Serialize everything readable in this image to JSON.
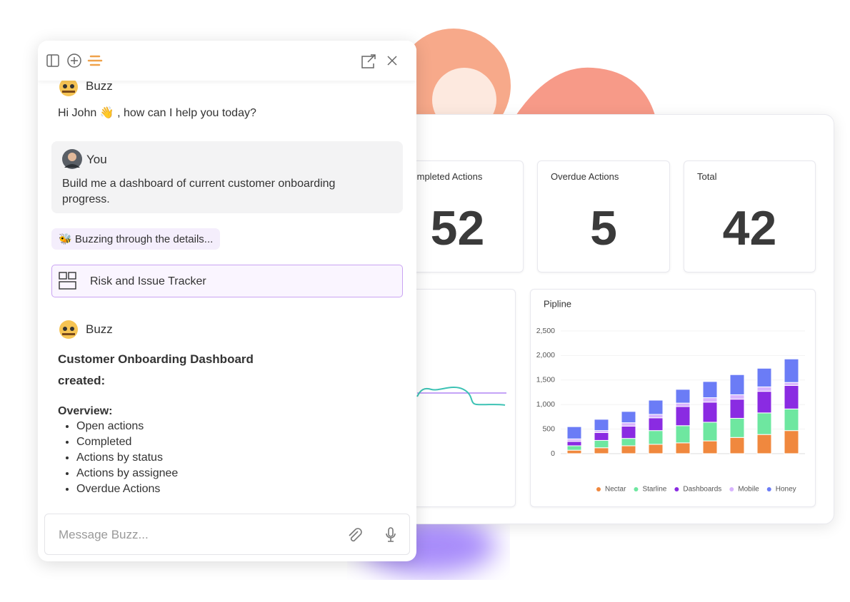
{
  "chat_panel": {
    "greeting_sender": "Buzz",
    "greeting": "Hi John 👋 , how can I help you today?",
    "user_sender": "You",
    "user_message": "Build me a dashboard of current customer onboarding progress.",
    "status": "🐝 Buzzing through the details...",
    "artifact": "Risk and Issue Tracker",
    "reply_sender": "Buzz",
    "reply_title": "Customer Onboarding Dashboard created:",
    "overview_heading": "Overview:",
    "overview_items": [
      "Open actions",
      "Completed",
      "Actions by status",
      "Actions by assignee",
      "Overdue Actions"
    ],
    "input_placeholder": "Message Buzz..."
  },
  "stats": [
    {
      "label": "Completed Actions",
      "value": 52
    },
    {
      "label": "Overdue Actions",
      "value": 5
    },
    {
      "label": "Total",
      "value": 42
    }
  ],
  "chart_data": {
    "type": "stacked_bar",
    "title": "Pipline",
    "ylim": [
      0,
      2500
    ],
    "yticks": [
      0,
      500,
      {
        "value": 1000,
        "label": "1,000"
      },
      {
        "value": 1500,
        "label": "1,500"
      },
      {
        "value": 2000,
        "label": "2,000"
      },
      {
        "value": 2500,
        "label": "2,500"
      }
    ],
    "grid": true,
    "legend": "bottom",
    "series": [
      {
        "name": "Nectar",
        "color": "#f0883e",
        "values": [
          70,
          120,
          160,
          190,
          220,
          260,
          330,
          390,
          470
        ]
      },
      {
        "name": "Starline",
        "color": "#6ee7a0",
        "values": [
          90,
          150,
          150,
          280,
          350,
          380,
          390,
          440,
          440
        ]
      },
      {
        "name": "Dashboards",
        "color": "#8a2be2",
        "values": [
          90,
          160,
          250,
          260,
          390,
          410,
          390,
          440,
          480
        ]
      },
      {
        "name": "Mobile",
        "color": "#d8b4fe",
        "values": [
          50,
          40,
          70,
          70,
          70,
          90,
          90,
          90,
          60
        ]
      },
      {
        "name": "Honey",
        "color": "#6b7cf6",
        "values": [
          250,
          230,
          230,
          290,
          280,
          330,
          410,
          380,
          480
        ]
      }
    ]
  }
}
